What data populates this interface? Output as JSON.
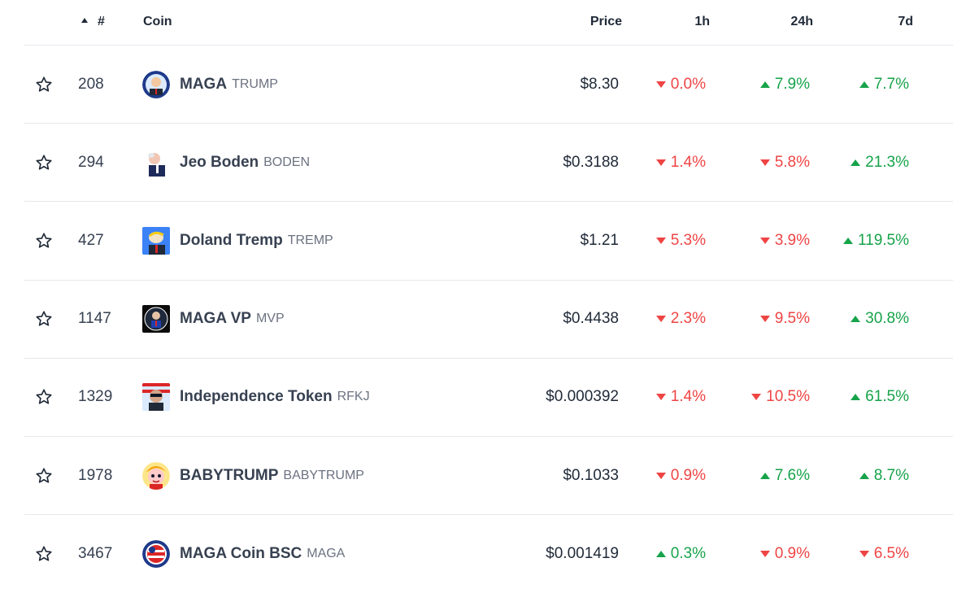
{
  "header": {
    "rank": "#",
    "coin": "Coin",
    "price": "Price",
    "h1": "1h",
    "h24": "24h",
    "d7": "7d"
  },
  "colors": {
    "up": "#16a34a",
    "down": "#ef4444"
  },
  "rows": [
    {
      "rank": "208",
      "name": "MAGA",
      "symbol": "TRUMP",
      "price": "$8.30",
      "h1": "0.0%",
      "h1_dir": "down",
      "h24": "7.9%",
      "h24_dir": "up",
      "d7": "7.7%",
      "d7_dir": "up",
      "icon": "maga-trump-icon"
    },
    {
      "rank": "294",
      "name": "Jeo Boden",
      "symbol": "BODEN",
      "price": "$0.3188",
      "h1": "1.4%",
      "h1_dir": "down",
      "h24": "5.8%",
      "h24_dir": "down",
      "d7": "21.3%",
      "d7_dir": "up",
      "icon": "jeo-boden-icon"
    },
    {
      "rank": "427",
      "name": "Doland Tremp",
      "symbol": "TREMP",
      "price": "$1.21",
      "h1": "5.3%",
      "h1_dir": "down",
      "h24": "3.9%",
      "h24_dir": "down",
      "d7": "119.5%",
      "d7_dir": "up",
      "icon": "doland-tremp-icon"
    },
    {
      "rank": "1147",
      "name": "MAGA VP",
      "symbol": "MVP",
      "price": "$0.4438",
      "h1": "2.3%",
      "h1_dir": "down",
      "h24": "9.5%",
      "h24_dir": "down",
      "d7": "30.8%",
      "d7_dir": "up",
      "icon": "maga-vp-icon"
    },
    {
      "rank": "1329",
      "name": "Independence Token",
      "symbol": "RFKJ",
      "price": "$0.000392",
      "h1": "1.4%",
      "h1_dir": "down",
      "h24": "10.5%",
      "h24_dir": "down",
      "d7": "61.5%",
      "d7_dir": "up",
      "icon": "independence-token-icon"
    },
    {
      "rank": "1978",
      "name": "BABYTRUMP",
      "symbol": "BABYTRUMP",
      "price": "$0.1033",
      "h1": "0.9%",
      "h1_dir": "down",
      "h24": "7.6%",
      "h24_dir": "up",
      "d7": "8.7%",
      "d7_dir": "up",
      "icon": "babytrump-icon"
    },
    {
      "rank": "3467",
      "name": "MAGA Coin BSC",
      "symbol": "MAGA",
      "price": "$0.001419",
      "h1": "0.3%",
      "h1_dir": "up",
      "h24": "0.9%",
      "h24_dir": "down",
      "d7": "6.5%",
      "d7_dir": "down",
      "icon": "maga-coin-bsc-icon"
    }
  ]
}
